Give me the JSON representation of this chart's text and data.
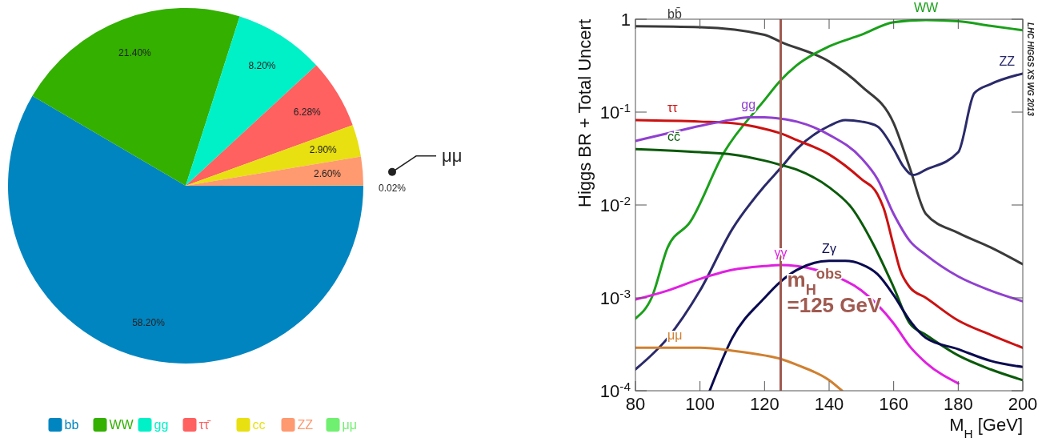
{
  "chart_data": [
    {
      "type": "pie",
      "categories": [
        "bb",
        "WW",
        "gg",
        "ττ̄",
        "cc",
        "ZZ",
        "μμ"
      ],
      "values": [
        58.2,
        21.4,
        8.2,
        6.28,
        2.9,
        2.6,
        0.02
      ],
      "colors": [
        "#0085c0",
        "#33b000",
        "#00f0c8",
        "#ff6060",
        "#e8e010",
        "#ff9970",
        "#70f070"
      ],
      "value_labels": [
        "58.20%",
        "21.40%",
        "8.20%",
        "6.28%",
        "2.90%",
        "2.60%",
        "0.02%"
      ],
      "legend": "bottom"
    },
    {
      "type": "line",
      "xlabel": "M$_{H}$ [GeV]",
      "ylabel": "Higgs BR + Total Uncert",
      "log": "y",
      "xlim": [
        80,
        200
      ],
      "xticks": [
        80,
        100,
        120,
        140,
        160,
        180,
        200
      ],
      "ylim": [
        0.0001,
        1
      ],
      "yticks": [
        {
          "value": 0.0001,
          "label": "10$^{-4}$"
        },
        {
          "value": 0.001,
          "label": "10$^{-3}$"
        },
        {
          "value": 0.01,
          "label": "10$^{-2}$"
        },
        {
          "value": 0.1,
          "label": "10$^{-1}$"
        },
        1
      ],
      "series": [
        {
          "name": "bb̄",
          "color": "#3a3a3a",
          "x": [
            80,
            100,
            120,
            125,
            140,
            150,
            160,
            165,
            170,
            180,
            190,
            200
          ],
          "values": [
            0.84,
            0.82,
            0.68,
            0.57,
            0.35,
            0.19,
            0.076,
            0.025,
            0.008,
            0.005,
            0.0035,
            0.0023
          ]
        },
        {
          "name": "WW",
          "color": "#1aa01a",
          "x": [
            80,
            85,
            90,
            97,
            107.5,
            120,
            125,
            130,
            140,
            150,
            160,
            170,
            180,
            190,
            200
          ],
          "values": [
            0.0006,
            0.001,
            0.0035,
            0.0066,
            0.037,
            0.135,
            0.22,
            0.32,
            0.51,
            0.68,
            0.93,
            0.98,
            0.95,
            0.85,
            0.76
          ]
        },
        {
          "name": "ZZ",
          "color": "#2a2a6a",
          "x": [
            80,
            90,
            100,
            110,
            120,
            125,
            130,
            140,
            145,
            150,
            155,
            160,
            163,
            166,
            170,
            180,
            185,
            190,
            200
          ],
          "values": [
            0.00017,
            0.00037,
            0.0012,
            0.0055,
            0.016,
            0.025,
            0.04,
            0.071,
            0.082,
            0.079,
            0.07,
            0.04,
            0.026,
            0.021,
            0.024,
            0.037,
            0.16,
            0.2,
            0.26
          ]
        },
        {
          "name": "ττ",
          "color": "#cc1111",
          "x": [
            80,
            100,
            110,
            120,
            125,
            130,
            140,
            150,
            155,
            157,
            160,
            162,
            165,
            170,
            180,
            190,
            200
          ],
          "values": [
            0.082,
            0.079,
            0.076,
            0.066,
            0.059,
            0.05,
            0.035,
            0.019,
            0.013,
            0.009,
            0.0036,
            0.002,
            0.0013,
            0.001,
            0.00057,
            0.0004,
            0.00029
          ]
        },
        {
          "name": "gg",
          "color": "#9040d0",
          "x": [
            80,
            90,
            100,
            110,
            115,
            120,
            125,
            130,
            140,
            150,
            155,
            160,
            165,
            170,
            180,
            190,
            200
          ],
          "values": [
            0.049,
            0.059,
            0.071,
            0.083,
            0.088,
            0.088,
            0.085,
            0.079,
            0.057,
            0.032,
            0.019,
            0.008,
            0.0041,
            0.0029,
            0.0017,
            0.0012,
            0.00092
          ]
        },
        {
          "name": "cc̄",
          "color": "#0a5a0a",
          "x": [
            80,
            100,
            110,
            120,
            125,
            130,
            140,
            147,
            154,
            160,
            165,
            170,
            180,
            190,
            200
          ],
          "values": [
            0.04,
            0.037,
            0.035,
            0.03,
            0.027,
            0.024,
            0.0155,
            0.0093,
            0.0036,
            0.0013,
            0.00053,
            0.0004,
            0.00024,
            0.00017,
            0.00013
          ]
        },
        {
          "name": "γγ",
          "color": "#e020e0",
          "x": [
            80,
            90,
            100,
            110,
            120,
            125,
            130,
            140,
            150,
            160,
            165,
            170,
            180
          ],
          "values": [
            0.00096,
            0.0012,
            0.0016,
            0.002,
            0.0022,
            0.00226,
            0.0022,
            0.0018,
            0.0012,
            0.00053,
            0.0003,
            0.0002,
            0.00012
          ]
        },
        {
          "name": "Zγ",
          "color": "#0a0a50",
          "x": [
            103,
            110,
            120,
            125,
            130,
            140,
            145,
            150,
            155,
            160,
            165,
            170,
            180,
            190,
            200
          ],
          "values": [
            0.0001,
            0.00037,
            0.001,
            0.0015,
            0.002,
            0.0025,
            0.0025,
            0.0023,
            0.0018,
            0.00107,
            0.00057,
            0.00037,
            0.00028,
            0.00021,
            0.00018
          ]
        },
        {
          "name": "μμ",
          "color": "#d08030",
          "x": [
            80,
            100,
            110,
            120,
            125,
            130,
            140,
            144
          ],
          "values": [
            0.00029,
            0.00029,
            0.00027,
            0.00024,
            0.00022,
            0.00019,
            0.00013,
            0.0001
          ]
        }
      ],
      "ref_lines": [
        {
          "axis": "x",
          "value": 125,
          "label": "m$_{H}$$^{obs}$\n=125 GeV",
          "color": "#a05a50"
        }
      ],
      "annotations": [
        "LHC HIGGS XS WG 2013"
      ]
    }
  ]
}
